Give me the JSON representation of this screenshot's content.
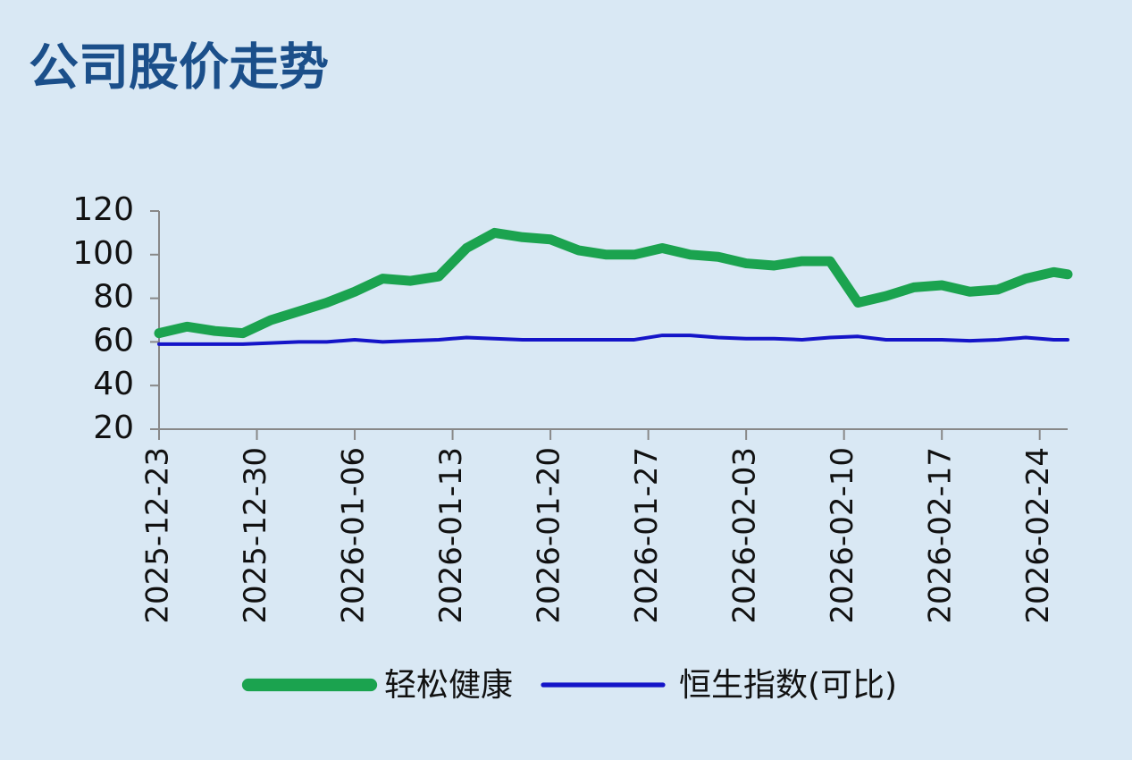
{
  "chart_data": {
    "type": "line",
    "title": "公司股价走势",
    "x": [
      "2025-12-23",
      "2025-12-25",
      "2025-12-27",
      "2025-12-29",
      "2025-12-31",
      "2026-01-02",
      "2026-01-04",
      "2026-01-06",
      "2026-01-08",
      "2026-01-10",
      "2026-01-12",
      "2026-01-14",
      "2026-01-16",
      "2026-01-18",
      "2026-01-20",
      "2026-01-22",
      "2026-01-24",
      "2026-01-26",
      "2026-01-28",
      "2026-01-30",
      "2026-02-01",
      "2026-02-03",
      "2026-02-05",
      "2026-02-07",
      "2026-02-09",
      "2026-02-11",
      "2026-02-13",
      "2026-02-15",
      "2026-02-17",
      "2026-02-19",
      "2026-02-21",
      "2026-02-23",
      "2026-02-25",
      "2026-02-26"
    ],
    "series": [
      {
        "name": "轻松健康",
        "color": "#1ba34f",
        "values": [
          64,
          67,
          65,
          64,
          70,
          74,
          78,
          83,
          89,
          88,
          90,
          103,
          110,
          108,
          107,
          102,
          100,
          100,
          103,
          100,
          99,
          96,
          95,
          97,
          97,
          78,
          81,
          85,
          86,
          83,
          84,
          89,
          92,
          91
        ]
      },
      {
        "name": "恒生指数(可比)",
        "color": "#1414c8",
        "values": [
          59,
          59,
          59,
          59,
          59.5,
          60,
          60,
          61,
          60,
          60.5,
          61,
          62,
          61.5,
          61,
          61,
          61,
          61,
          61,
          63,
          63,
          62,
          61.5,
          61.5,
          61,
          62,
          62.5,
          61,
          61,
          61,
          60.5,
          61,
          62,
          61,
          61
        ]
      }
    ],
    "xlim": [
      "2025-12-23",
      "2026-02-26"
    ],
    "xticks": [
      "2025-12-23",
      "2025-12-30",
      "2026-01-06",
      "2026-01-13",
      "2026-01-20",
      "2026-01-27",
      "2026-02-03",
      "2026-02-10",
      "2026-02-17",
      "2026-02-24"
    ],
    "ylim": [
      20,
      120
    ],
    "yticks": [
      20,
      40,
      60,
      80,
      100,
      120
    ]
  }
}
